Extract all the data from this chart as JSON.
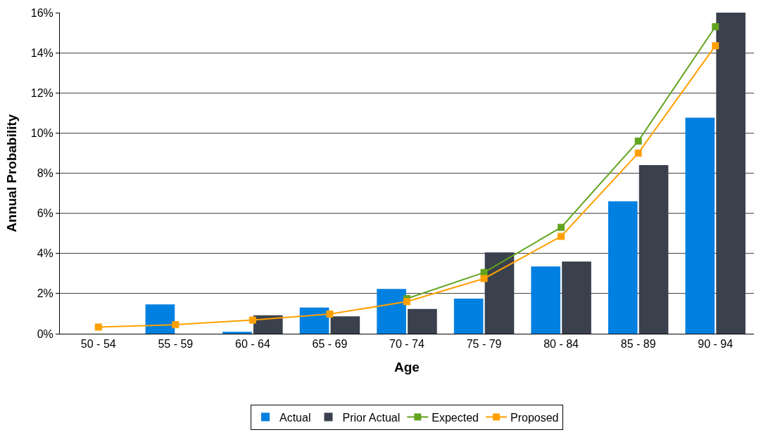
{
  "chart_data": {
    "type": "bar",
    "xlabel": "Age",
    "ylabel": "Annual Probability",
    "categories": [
      "50 - 54",
      "55 - 59",
      "60 - 64",
      "65 - 69",
      "70 - 74",
      "75 - 79",
      "80 - 84",
      "85 - 89",
      "90 - 94"
    ],
    "series": [
      {
        "name": "Actual",
        "color": "#0080e0",
        "values": [
          null,
          1.46,
          0.1,
          1.3,
          2.23,
          1.75,
          3.35,
          6.6,
          10.77
        ]
      },
      {
        "name": "Prior Actual",
        "color": "#3a414c",
        "values": [
          null,
          null,
          0.92,
          0.87,
          1.23,
          4.05,
          3.6,
          8.4,
          16
        ]
      },
      {
        "name": "Expected",
        "type": "line",
        "color": "#62a420",
        "marker": "square",
        "values": [
          null,
          null,
          null,
          null,
          1.75,
          3.05,
          5.3,
          9.6,
          15.3
        ]
      },
      {
        "name": "Proposed",
        "type": "line",
        "color": "#ffa000",
        "marker": "square",
        "values": [
          0.33,
          0.45,
          0.68,
          0.98,
          1.6,
          2.75,
          4.85,
          9.0,
          14.35
        ]
      }
    ],
    "ylim": [
      0,
      16
    ],
    "yticks": [
      {
        "value": 0,
        "label": "0%"
      },
      {
        "value": 2,
        "label": "2%"
      },
      {
        "value": 4,
        "label": "4%"
      },
      {
        "value": 6,
        "label": "6%"
      },
      {
        "value": 8,
        "label": "8%"
      },
      {
        "value": 10,
        "label": "10%"
      },
      {
        "value": 12,
        "label": "12%"
      },
      {
        "value": 14,
        "label": "14%"
      },
      {
        "value": 16,
        "label": "16%"
      }
    ],
    "grid": "y",
    "legend": "bottom"
  }
}
